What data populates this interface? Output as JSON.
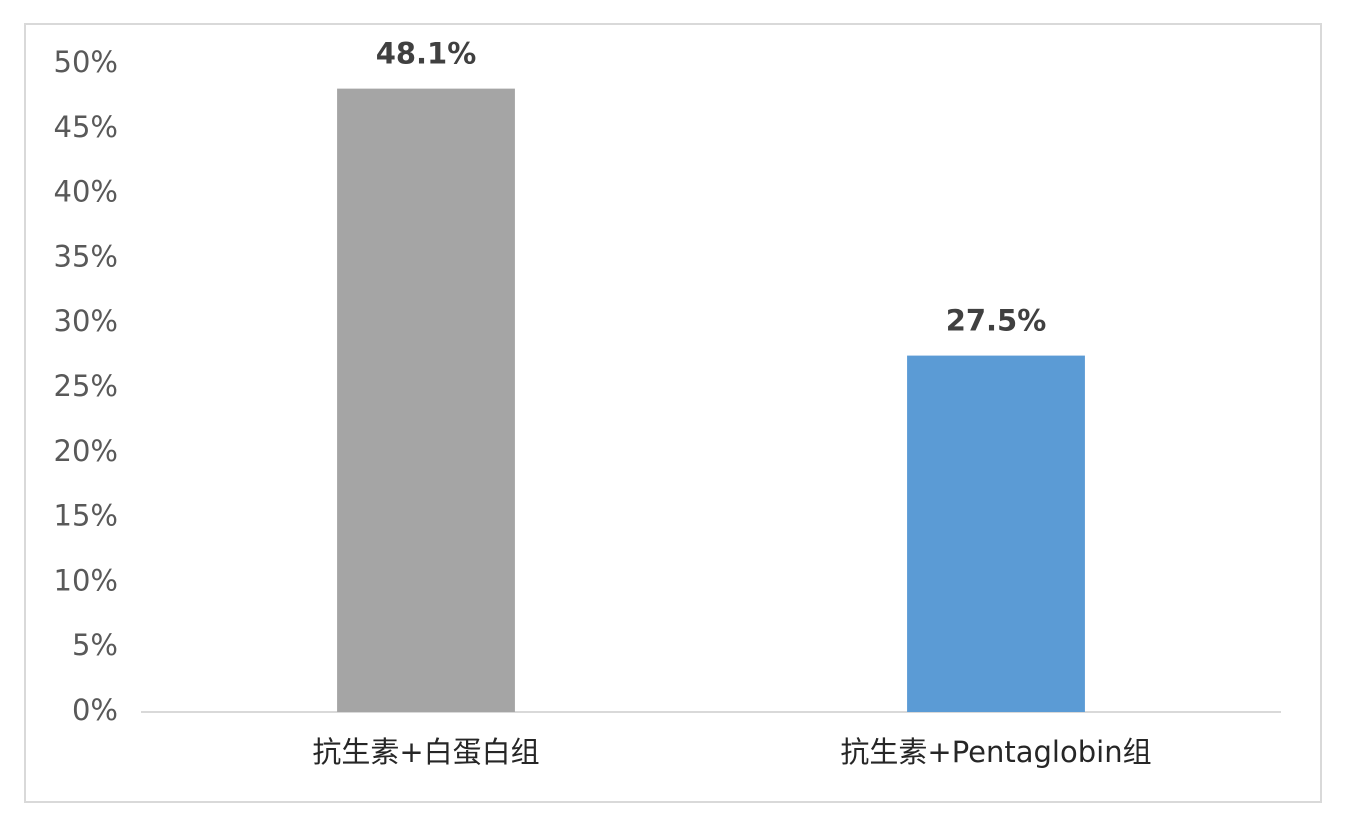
{
  "chart_data": {
    "type": "bar",
    "categories": [
      "抗生素+白蛋白组",
      "抗生素+Pentaglobin组"
    ],
    "values": [
      48.1,
      27.5
    ],
    "value_labels": [
      "48.1%",
      "27.5%"
    ],
    "colors": [
      "#a5a5a5",
      "#5b9bd5"
    ],
    "ylim": [
      0,
      50
    ],
    "yticks": [
      {
        "value": 0,
        "label": "0%"
      },
      {
        "value": 5,
        "label": "5%"
      },
      {
        "value": 10,
        "label": "10%"
      },
      {
        "value": 15,
        "label": "15%"
      },
      {
        "value": 20,
        "label": "20%"
      },
      {
        "value": 25,
        "label": "25%"
      },
      {
        "value": 30,
        "label": "30%"
      },
      {
        "value": 35,
        "label": "35%"
      },
      {
        "value": 40,
        "label": "40%"
      },
      {
        "value": 45,
        "label": "45%"
      },
      {
        "value": 50,
        "label": "50%"
      }
    ],
    "grid": false
  }
}
